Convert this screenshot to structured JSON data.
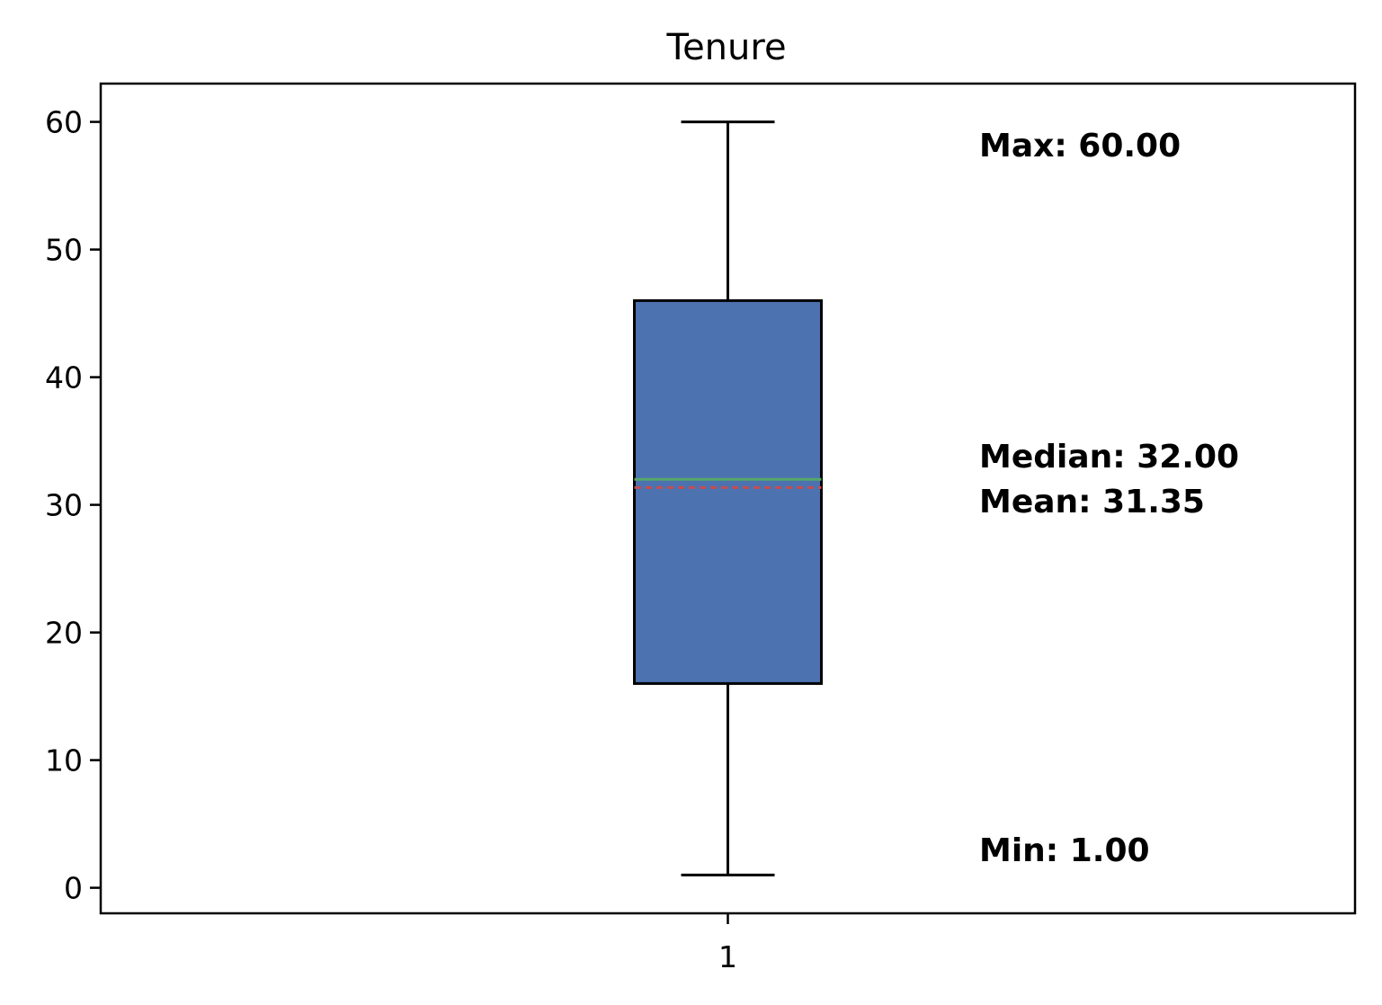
{
  "chart_data": {
    "type": "box",
    "title": "Tenure",
    "xlabel": "",
    "ylabel": "",
    "categories": [
      "1"
    ],
    "x_tick_labels": [
      "1"
    ],
    "y_ticks": [
      0,
      10,
      20,
      30,
      40,
      50,
      60
    ],
    "y_tick_labels": [
      "0",
      "10",
      "20",
      "30",
      "40",
      "50",
      "60"
    ],
    "ylim": [
      -2,
      63
    ],
    "grid": false,
    "box": {
      "min": 1.0,
      "q1": 16.0,
      "median": 32.0,
      "mean": 31.35,
      "q3": 46.0,
      "max": 60.0
    },
    "annotations": {
      "max": "Max: 60.00",
      "median": "Median: 32.00",
      "mean": "Mean: 31.35",
      "min": "Min: 1.00"
    },
    "colors": {
      "box_fill": "#4c72b0",
      "box_edge": "#000000",
      "median_line": "#55a868",
      "mean_line": "#c44e52",
      "whisker": "#000000"
    }
  }
}
